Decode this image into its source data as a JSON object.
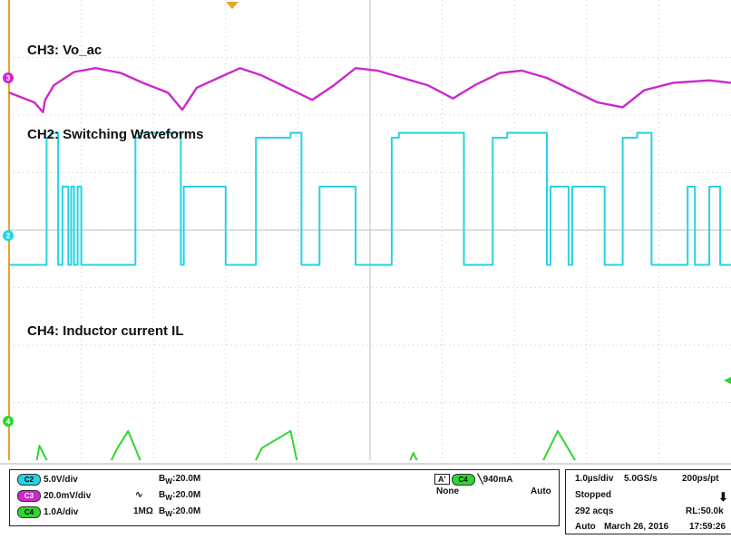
{
  "colors": {
    "ch2": "#27d3e0",
    "ch3": "#cc28cc",
    "ch4": "#2fd62f",
    "grid": "#bdbdbd",
    "frame": "#e8a32a"
  },
  "channels": {
    "ch3": {
      "label": "CH3: Vo_ac",
      "marker": "3"
    },
    "ch2": {
      "label": "CH2: Switching Waveforms",
      "marker": "2"
    },
    "ch4": {
      "label": "CH4: Inductor current IL",
      "marker": "4"
    }
  },
  "chart_data": {
    "type": "line",
    "x_unit": "µs",
    "x_per_div": "1.0µs/div",
    "x_range": [
      0,
      10
    ],
    "series": [
      {
        "name": "CH3: Vo_ac",
        "channel": "C3",
        "scale": "20.0mV/div",
        "x": [
          0.0,
          0.35,
          0.47,
          0.5,
          0.62,
          0.9,
          1.2,
          1.55,
          1.85,
          2.2,
          2.4,
          2.6,
          2.9,
          3.2,
          3.5,
          3.85,
          4.2,
          4.5,
          4.8,
          5.1,
          5.45,
          5.8,
          6.15,
          6.45,
          6.8,
          7.1,
          7.45,
          7.8,
          8.15,
          8.5,
          8.8,
          9.2,
          9.7,
          10.0
        ],
        "y": [
          -0.3,
          -0.5,
          -0.7,
          -0.45,
          -0.15,
          0.12,
          0.2,
          0.1,
          -0.1,
          -0.3,
          -0.65,
          -0.2,
          0.0,
          0.2,
          0.05,
          -0.2,
          -0.45,
          -0.15,
          0.2,
          0.15,
          0.0,
          -0.15,
          -0.42,
          -0.15,
          0.1,
          0.15,
          0.0,
          -0.25,
          -0.5,
          -0.6,
          -0.25,
          -0.1,
          -0.05,
          -0.1
        ]
      },
      {
        "name": "CH2: Switching Waveforms",
        "channel": "C2",
        "scale": "5.0V/div",
        "x": [
          0.0,
          0.38,
          0.42,
          0.52,
          0.58,
          0.65,
          0.68,
          0.74,
          0.82,
          0.86,
          0.9,
          0.95,
          1.0,
          1.02,
          1.25,
          1.5,
          1.75,
          1.8,
          2.38,
          2.42,
          3.0,
          3.4,
          3.42,
          3.9,
          4.05,
          4.3,
          4.55,
          4.8,
          5.05,
          5.3,
          5.4,
          5.42,
          6.3,
          6.5,
          6.7,
          6.9,
          7.45,
          7.5,
          7.75,
          7.8,
          8.25,
          8.5,
          8.7,
          8.9,
          9.4,
          9.5,
          9.7,
          9.85,
          10.0
        ],
        "y": [
          -0.6,
          -0.6,
          -0.6,
          2.0,
          2.1,
          2.1,
          -0.6,
          1.0,
          -0.6,
          1.0,
          -0.6,
          1.0,
          -0.6,
          -0.6,
          -0.6,
          -0.6,
          2.0,
          2.1,
          -0.6,
          1.0,
          -0.6,
          -0.6,
          2.0,
          2.1,
          -0.6,
          1.0,
          1.0,
          -0.6,
          -0.6,
          2.0,
          2.1,
          2.1,
          -0.6,
          -0.6,
          2.0,
          2.1,
          -0.6,
          1.0,
          -0.6,
          1.0,
          -0.6,
          2.0,
          2.1,
          -0.6,
          1.0,
          -0.6,
          1.0,
          -0.6,
          -0.6
        ]
      },
      {
        "name": "CH4: Inductor current IL",
        "channel": "C4",
        "scale": "1.0A/div",
        "x": [
          0.0,
          0.35,
          0.42,
          0.7,
          0.75,
          0.8,
          0.9,
          0.95,
          1.0,
          1.5,
          1.65,
          2.0,
          2.4,
          2.55,
          2.8,
          2.9,
          3.0,
          3.5,
          3.9,
          4.05,
          4.3,
          4.5,
          4.75,
          5.4,
          5.6,
          5.85,
          5.95,
          6.1,
          6.55,
          6.85,
          6.95,
          7.15,
          7.6,
          8.1,
          8.4,
          8.5,
          9.2,
          9.6,
          9.85,
          10.0
        ],
        "y": [
          -2.0,
          -1.1,
          -0.5,
          -1.3,
          -2.05,
          -1.85,
          -2.1,
          -1.9,
          -2.05,
          -0.55,
          -0.2,
          -1.45,
          -2.1,
          -1.9,
          -2.05,
          -1.85,
          -2.05,
          -0.55,
          -0.2,
          -1.25,
          -2.05,
          -1.85,
          -2.05,
          -1.3,
          -0.65,
          -1.4,
          -2.05,
          -1.9,
          -2.05,
          -1.9,
          -2.05,
          -1.55,
          -0.2,
          -1.45,
          -2.05,
          -1.85,
          -1.95,
          -2.05,
          -1.9,
          -2.0
        ]
      }
    ]
  },
  "statusbar": {
    "ch2": {
      "pill": "C2",
      "scale": "5.0V/div",
      "bw": "20.0M"
    },
    "ch3": {
      "pill": "C3",
      "scale": "20.0mV/div",
      "bw": "20.0M",
      "coupling": "∿"
    },
    "ch4": {
      "pill": "C4",
      "scale": "1.0A/div",
      "bw": "20.0M",
      "impedance": "1MΩ"
    },
    "bw_prefix": "B",
    "bw_sub": "W",
    "trigger": {
      "label": "A'",
      "pill": "C4",
      "level": "940mA",
      "source": "None",
      "mode": "Auto"
    },
    "acq": {
      "timebase": "1.0µs/div",
      "rate": "5.0GS/s",
      "res": "200ps/pt",
      "state": "Stopped",
      "acqs": "292 acqs",
      "rl": "RL:50.0k",
      "mode": "Auto",
      "date": "March 26, 2016",
      "time": "17:59:26"
    }
  }
}
